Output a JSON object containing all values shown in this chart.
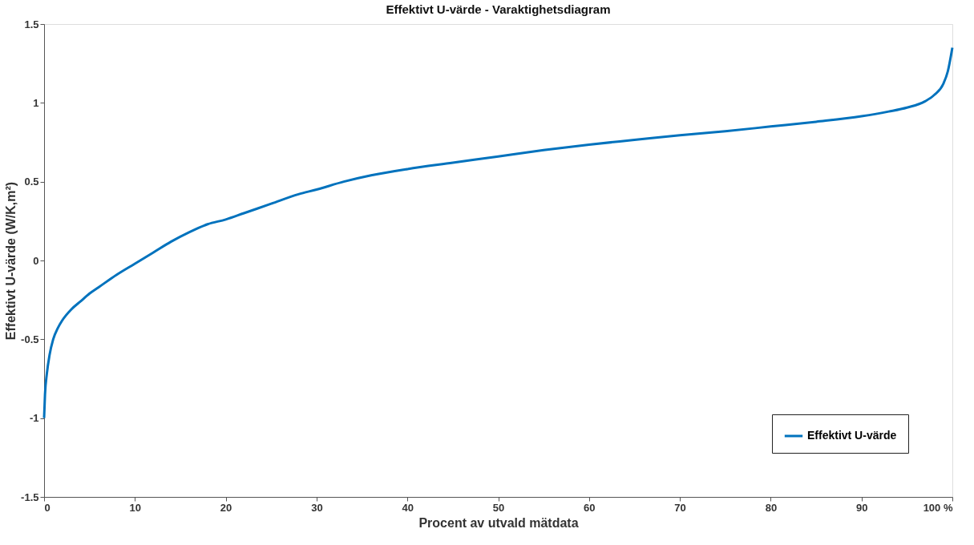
{
  "chart_data": {
    "type": "line",
    "title": "Effektivt U-värde - Varaktighetsdiagram",
    "xlabel": "Procent av utvald mätdata",
    "ylabel": "Effektivt U-värde (W/K,m²)",
    "x": [
      0,
      0.1,
      0.3,
      0.6,
      1,
      1.5,
      2,
      3,
      4,
      5,
      6,
      8,
      10,
      12,
      14,
      16,
      18,
      20,
      22,
      25,
      28,
      30,
      33,
      36,
      40,
      45,
      50,
      55,
      60,
      65,
      70,
      75,
      80,
      85,
      90,
      93,
      95,
      97,
      98,
      99,
      99.5,
      100
    ],
    "series": [
      {
        "name": "Effektivt U-värde",
        "color": "#0072bd",
        "values": [
          -1.0,
          -0.85,
          -0.72,
          -0.6,
          -0.5,
          -0.43,
          -0.38,
          -0.31,
          -0.26,
          -0.21,
          -0.17,
          -0.09,
          -0.02,
          0.05,
          0.12,
          0.18,
          0.23,
          0.26,
          0.3,
          0.36,
          0.42,
          0.45,
          0.5,
          0.54,
          0.58,
          0.62,
          0.66,
          0.7,
          0.735,
          0.765,
          0.795,
          0.82,
          0.85,
          0.88,
          0.915,
          0.945,
          0.97,
          1.01,
          1.05,
          1.12,
          1.2,
          1.35
        ]
      }
    ],
    "xlim": [
      0,
      100
    ],
    "xticks": [
      0,
      10,
      20,
      30,
      40,
      50,
      60,
      70,
      80,
      90,
      {
        "value": 100,
        "label": "100 %"
      }
    ],
    "ylim": [
      -1.5,
      1.5
    ],
    "yticks": [
      -1.5,
      -1,
      -0.5,
      0,
      0.5,
      1,
      1.5
    ],
    "legend": "bottom right",
    "grid": false,
    "line_style": "solid",
    "marker": "none"
  }
}
